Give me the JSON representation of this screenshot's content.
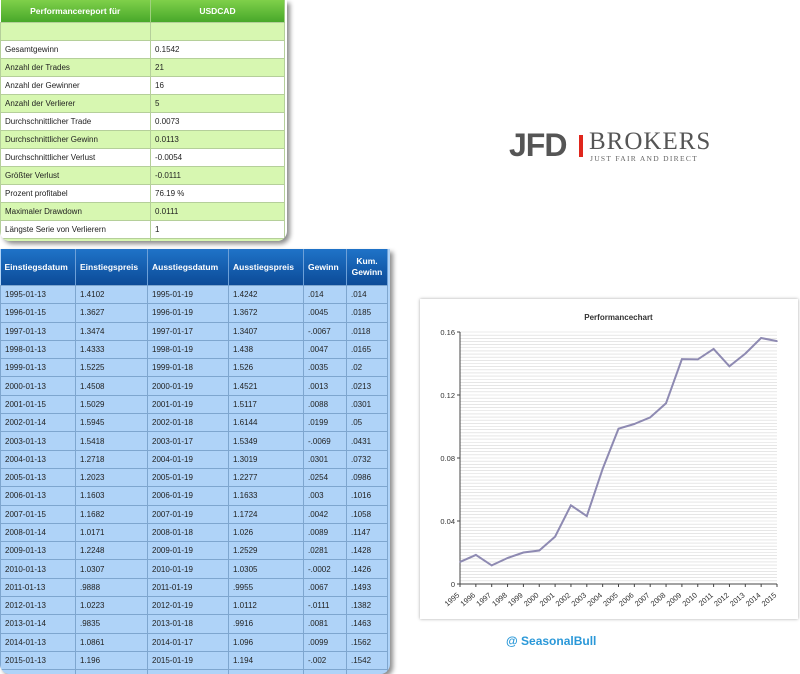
{
  "summary": {
    "header": [
      "Performancereport für",
      "USDCAD"
    ],
    "rows": [
      [
        "",
        ""
      ],
      [
        "Gesamtgewinn",
        "0.1542"
      ],
      [
        "Anzahl der Trades",
        "21"
      ],
      [
        "Anzahl der Gewinner",
        "16"
      ],
      [
        "Anzahl der Verlierer",
        "5"
      ],
      [
        "Durchschnittlicher Trade",
        "0.0073"
      ],
      [
        "Durchschnittlicher Gewinn",
        "0.0113"
      ],
      [
        "Durchschnittlicher Verlust",
        "-0.0054"
      ],
      [
        "Größter Verlust",
        "-0.0111"
      ],
      [
        "Prozent profitabel",
        "76.19 %"
      ],
      [
        "Maximaler Drawdown",
        "0.0111"
      ],
      [
        "Längste Serie von Verlierern",
        "1"
      ],
      [
        "",
        ""
      ]
    ]
  },
  "trades": {
    "headers": [
      "Einstiegsdatum",
      "Einstiegspreis",
      "Ausstiegsdatum",
      "Ausstiegspreis",
      "Gewinn",
      "Kum. Gewinn"
    ],
    "rows": [
      [
        "1995-01-13",
        "1.4102",
        "1995-01-19",
        "1.4242",
        ".014",
        ".014"
      ],
      [
        "1996-01-15",
        "1.3627",
        "1996-01-19",
        "1.3672",
        ".0045",
        ".0185"
      ],
      [
        "1997-01-13",
        "1.3474",
        "1997-01-17",
        "1.3407",
        "-.0067",
        ".0118"
      ],
      [
        "1998-01-13",
        "1.4333",
        "1998-01-19",
        "1.438",
        ".0047",
        ".0165"
      ],
      [
        "1999-01-13",
        "1.5225",
        "1999-01-18",
        "1.526",
        ".0035",
        ".02"
      ],
      [
        "2000-01-13",
        "1.4508",
        "2000-01-19",
        "1.4521",
        ".0013",
        ".0213"
      ],
      [
        "2001-01-15",
        "1.5029",
        "2001-01-19",
        "1.5117",
        ".0088",
        ".0301"
      ],
      [
        "2002-01-14",
        "1.5945",
        "2002-01-18",
        "1.6144",
        ".0199",
        ".05"
      ],
      [
        "2003-01-13",
        "1.5418",
        "2003-01-17",
        "1.5349",
        "-.0069",
        ".0431"
      ],
      [
        "2004-01-13",
        "1.2718",
        "2004-01-19",
        "1.3019",
        ".0301",
        ".0732"
      ],
      [
        "2005-01-13",
        "1.2023",
        "2005-01-19",
        "1.2277",
        ".0254",
        ".0986"
      ],
      [
        "2006-01-13",
        "1.1603",
        "2006-01-19",
        "1.1633",
        ".003",
        ".1016"
      ],
      [
        "2007-01-15",
        "1.1682",
        "2007-01-19",
        "1.1724",
        ".0042",
        ".1058"
      ],
      [
        "2008-01-14",
        "1.0171",
        "2008-01-18",
        "1.026",
        ".0089",
        ".1147"
      ],
      [
        "2009-01-13",
        "1.2248",
        "2009-01-19",
        "1.2529",
        ".0281",
        ".1428"
      ],
      [
        "2010-01-13",
        "1.0307",
        "2010-01-19",
        "1.0305",
        "-.0002",
        ".1426"
      ],
      [
        "2011-01-13",
        ".9888",
        "2011-01-19",
        ".9955",
        ".0067",
        ".1493"
      ],
      [
        "2012-01-13",
        "1.0223",
        "2012-01-19",
        "1.0112",
        "-.0111",
        ".1382"
      ],
      [
        "2013-01-14",
        ".9835",
        "2013-01-18",
        ".9916",
        ".0081",
        ".1463"
      ],
      [
        "2014-01-13",
        "1.0861",
        "2014-01-17",
        "1.096",
        ".0099",
        ".1562"
      ],
      [
        "2015-01-13",
        "1.196",
        "2015-01-19",
        "1.194",
        "-.002",
        ".1542"
      ],
      [
        "",
        "",
        "",
        "",
        "",
        ""
      ]
    ]
  },
  "logo": {
    "left": "JFD",
    "right": "BROKERS",
    "tagline": "JUST FAIR AND DIRECT"
  },
  "credit": "@ SeasonalBull",
  "chart_data": {
    "type": "line",
    "title": "Performancechart",
    "x": [
      "1995",
      "1996",
      "1997",
      "1998",
      "1999",
      "2000",
      "2001",
      "2002",
      "2003",
      "2004",
      "2005",
      "2006",
      "2007",
      "2008",
      "2009",
      "2010",
      "2011",
      "2012",
      "2013",
      "2014",
      "2015"
    ],
    "series": [
      {
        "values": [
          0.014,
          0.0185,
          0.0118,
          0.0165,
          0.02,
          0.0213,
          0.0301,
          0.05,
          0.0431,
          0.0732,
          0.0986,
          0.1016,
          0.1058,
          0.1147,
          0.1428,
          0.1426,
          0.1493,
          0.1382,
          0.1463,
          0.1562,
          0.1542
        ]
      }
    ],
    "ylim": [
      0,
      0.16
    ],
    "yticks": [
      "0",
      "0.04",
      "0.08",
      "0.12",
      "0.16"
    ],
    "grid": true,
    "colors": {
      "line": "#8e8ab2",
      "grid": "#d8d8d8"
    }
  }
}
